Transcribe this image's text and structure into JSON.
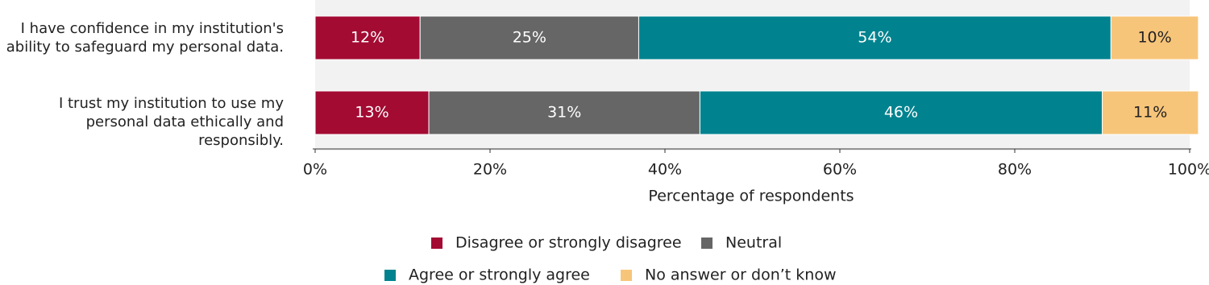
{
  "chart_data": {
    "type": "stacked-bar-horizontal",
    "categories": [
      "I have confidence in my institution's ability to safeguard my personal data.",
      "I trust my institution to use my personal data ethically and responsibly."
    ],
    "series": [
      {
        "name": "Disagree or strongly disagree",
        "color": "#a30b33",
        "values": [
          12,
          13
        ],
        "value_labels": [
          "12%",
          "13%"
        ]
      },
      {
        "name": "Neutral",
        "color": "#666666",
        "values": [
          25,
          31
        ],
        "value_labels": [
          "25%",
          "31%"
        ]
      },
      {
        "name": "Agree or strongly agree",
        "color": "#00838f",
        "values": [
          54,
          46
        ],
        "value_labels": [
          "54%",
          "46%"
        ]
      },
      {
        "name": "No answer or don’t know",
        "color": "#f7c57a",
        "values": [
          10,
          11
        ],
        "value_labels": [
          "10%",
          "11%"
        ]
      }
    ],
    "xlabel": "Percentage of respondents",
    "xlim": [
      0,
      100
    ],
    "xticks": [
      {
        "value": 0,
        "label": "0%"
      },
      {
        "value": 20,
        "label": "20%"
      },
      {
        "value": 40,
        "label": "40%"
      },
      {
        "value": 60,
        "label": "60%"
      },
      {
        "value": 80,
        "label": "80%"
      },
      {
        "value": 100,
        "label": "100%"
      }
    ],
    "legend": "bottom"
  }
}
